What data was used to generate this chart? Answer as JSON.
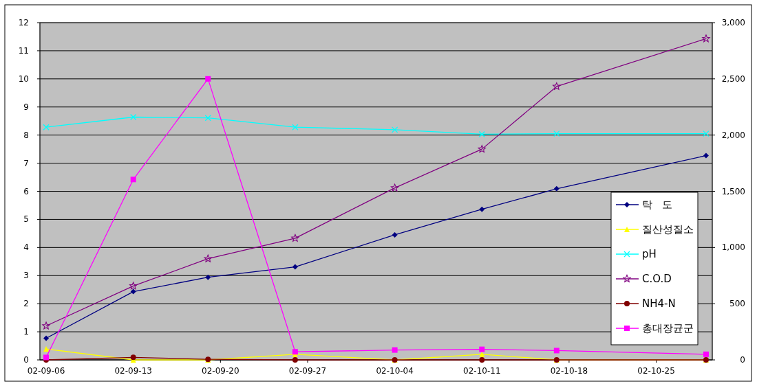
{
  "chart_data": {
    "type": "line",
    "x": [
      "--09-06",
      "--09-13",
      "--09-19",
      "--09-26",
      "--10-04",
      "--10-11",
      "--10-17",
      "--10-29"
    ],
    "xlim": [
      "--09-05T12:00",
      "--10-29T12:00"
    ],
    "xticks": [
      {
        "value": "--09-06",
        "label": "02-09-06"
      },
      {
        "value": "--09-13",
        "label": "02-09-13"
      },
      {
        "value": "--09-20",
        "label": "02-09-20"
      },
      {
        "value": "--09-27",
        "label": "02-09-27"
      },
      {
        "value": "--10-04",
        "label": "02-10-04"
      },
      {
        "value": "--10-11",
        "label": "02-10-11"
      },
      {
        "value": "--10-18",
        "label": "02-10-18"
      },
      {
        "value": "--10-25",
        "label": "02-10-25"
      }
    ],
    "ylim": [
      0,
      12
    ],
    "yticks": [
      0,
      1,
      2,
      3,
      4,
      5,
      6,
      7,
      8,
      9,
      10,
      11,
      12
    ],
    "y2lim": [
      0,
      3000
    ],
    "y2ticks": [
      0,
      {
        "value": 500,
        "label": "500"
      },
      {
        "value": 1000,
        "label": "1,000"
      },
      {
        "value": 1500,
        "label": "1,500"
      },
      {
        "value": 2000,
        "label": "2,000"
      },
      {
        "value": 2500,
        "label": "2,500"
      },
      {
        "value": 3000,
        "label": "3,000"
      }
    ],
    "grid": "y",
    "legend": "right",
    "series": [
      {
        "name": "탁   도",
        "color": "#000080",
        "marker": "diamond",
        "values": [
          0.77,
          2.43,
          2.94,
          3.31,
          4.45,
          5.36,
          6.09,
          7.27
        ]
      },
      {
        "name": "질산성질소",
        "color": "#ffff00",
        "marker": "triangle",
        "values": [
          0.39,
          0.0,
          0.0,
          0.2,
          0.0,
          0.2,
          0.0,
          0.0
        ]
      },
      {
        "name": "pH",
        "color": "#00ffff",
        "marker": "cross",
        "values": [
          8.28,
          8.64,
          8.61,
          8.28,
          8.19,
          8.03,
          8.05,
          8.05
        ]
      },
      {
        "name": "C.O.D",
        "color": "#800080",
        "marker": "star",
        "values": [
          1.21,
          2.63,
          3.6,
          4.33,
          6.12,
          7.5,
          9.73,
          11.43
        ]
      },
      {
        "name": "NH4-N",
        "color": "#800000",
        "marker": "circle",
        "values": [
          0.0,
          0.09,
          0.02,
          0.0,
          0.0,
          0.0,
          0.0,
          0.0
        ]
      },
      {
        "name": "총대장균군",
        "color": "#ff00ff",
        "marker": "square",
        "axis": "y2",
        "values": [
          22,
          1605,
          2500,
          72,
          88,
          94,
          83,
          50
        ]
      }
    ]
  }
}
